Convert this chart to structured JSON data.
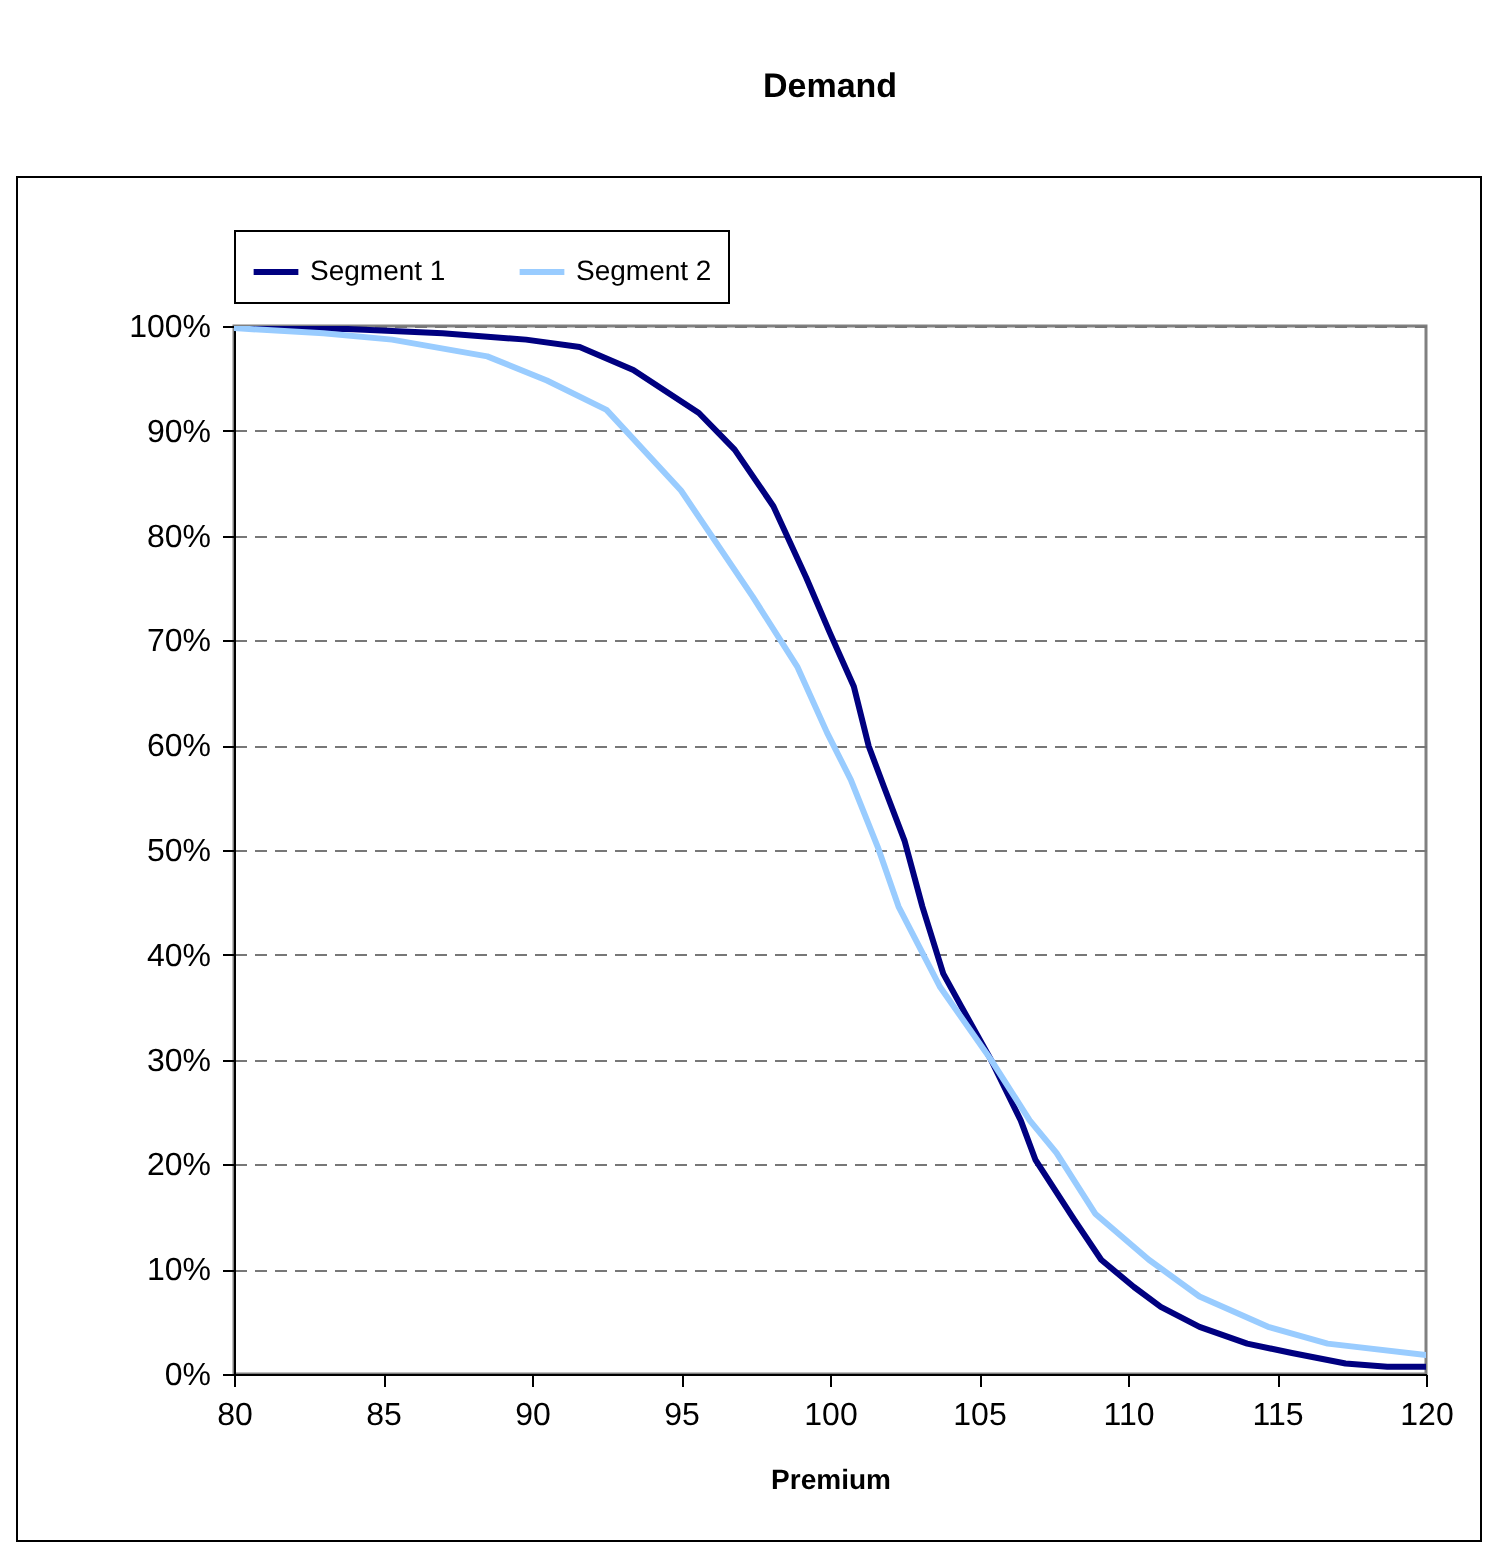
{
  "chart_data": {
    "type": "line",
    "title": "Demand",
    "xlabel": "Premium",
    "xlim": [
      80,
      120
    ],
    "xticks": [
      80,
      85,
      90,
      95,
      100,
      105,
      110,
      115,
      120
    ],
    "ylim": [
      0,
      100
    ],
    "yticks": [
      {
        "value": 0,
        "label": "0%"
      },
      {
        "value": 10,
        "label": "10%"
      },
      {
        "value": 20,
        "label": "20%"
      },
      {
        "value": 30,
        "label": "30%"
      },
      {
        "value": 40,
        "label": "40%"
      },
      {
        "value": 50,
        "label": "50%"
      },
      {
        "value": 60,
        "label": "60%"
      },
      {
        "value": 70,
        "label": "70%"
      },
      {
        "value": 80,
        "label": "80%"
      },
      {
        "value": 90,
        "label": "90%"
      },
      {
        "value": 100,
        "label": "100%"
      }
    ],
    "grid": "y",
    "legend": "top",
    "marker": "none",
    "line_style": "solid",
    "series": [
      {
        "name": "Segment 1",
        "color": "#000080",
        "x": [
          80,
          84,
          87,
          89.8,
          91.6,
          93.4,
          95.6,
          96.8,
          98.1,
          99.2,
          100,
          100.8,
          101.3,
          101.8,
          102.5,
          103.1,
          103.8,
          104.4,
          105.4,
          106.4,
          106.9,
          108.2,
          109.1,
          110.2,
          111.1,
          112.4,
          114,
          115.5,
          117.3,
          118.7,
          120
        ],
        "values": [
          100,
          99.7,
          99.3,
          98.7,
          98,
          95.8,
          91.7,
          88.2,
          82.8,
          76,
          70.7,
          65.6,
          59.9,
          56.1,
          50.9,
          44.6,
          38.2,
          35.1,
          30,
          24.2,
          20.4,
          14.7,
          10.9,
          8.3,
          6.4,
          4.5,
          2.9,
          2,
          1,
          0.7,
          0.7
        ]
      },
      {
        "name": "Segment 2",
        "color": "#99ccff",
        "x": [
          80,
          83,
          85.3,
          88.5,
          90.5,
          92.5,
          95,
          97.4,
          98.9,
          99.9,
          100.7,
          101.6,
          102.3,
          103.7,
          105.4,
          106.7,
          107.6,
          108.9,
          110.7,
          112.4,
          114.7,
          116.7,
          120
        ],
        "values": [
          99.8,
          99.3,
          98.7,
          97.1,
          94.8,
          92,
          84.3,
          74.2,
          67.5,
          61.2,
          56.7,
          50.3,
          44.6,
          36.9,
          30,
          24.2,
          21.1,
          15.3,
          10.9,
          7.4,
          4.5,
          2.9,
          1.8
        ]
      }
    ]
  }
}
